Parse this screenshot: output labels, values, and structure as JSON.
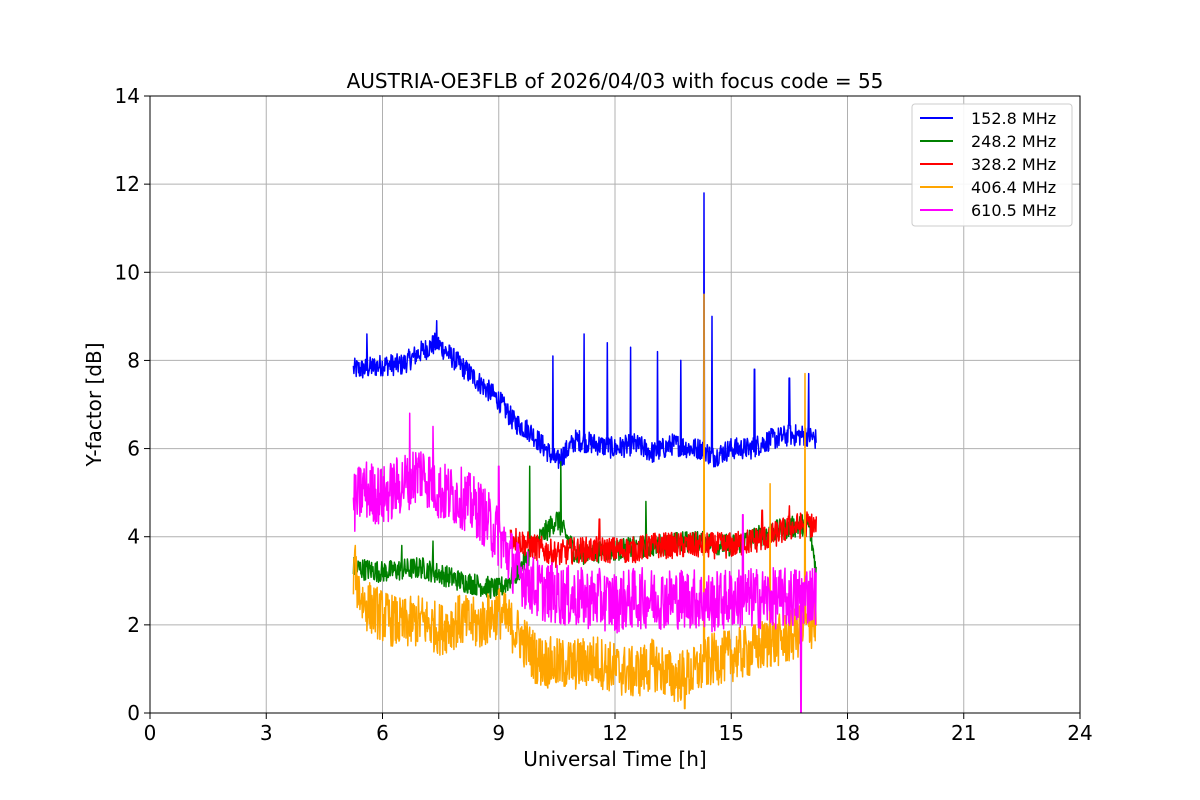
{
  "chart_data": {
    "type": "line",
    "title": "AUSTRIA-OE3FLB of 2026/04/03 with focus code = 55",
    "xlabel": "Universal Time [h]",
    "ylabel": "Y-factor [dB]",
    "xlim": [
      0,
      24
    ],
    "ylim": [
      0,
      14
    ],
    "xticks": [
      0,
      3,
      6,
      9,
      12,
      15,
      18,
      21,
      24
    ],
    "yticks": [
      0,
      2,
      4,
      6,
      8,
      10,
      12,
      14
    ],
    "grid": true,
    "legend_position": "top-right",
    "series": [
      {
        "name": "152.8 MHz",
        "color": "#0000ff",
        "x": [
          5.25,
          5.5,
          6.0,
          6.5,
          7.0,
          7.4,
          8.0,
          8.5,
          9.0,
          9.4,
          9.8,
          10.5,
          11.0,
          11.5,
          12.0,
          12.5,
          13.0,
          13.5,
          14.0,
          14.3,
          14.5,
          15.0,
          15.5,
          16.0,
          16.5,
          17.0,
          17.2
        ],
        "y": [
          7.8,
          7.8,
          7.9,
          7.9,
          8.2,
          8.4,
          7.9,
          7.5,
          7.1,
          6.6,
          6.4,
          5.7,
          6.2,
          6.1,
          6.0,
          6.1,
          5.9,
          6.1,
          6.0,
          6.0,
          5.8,
          6.0,
          6.0,
          6.2,
          6.3,
          6.3,
          6.2
        ],
        "spikes": [
          [
            5.6,
            8.6
          ],
          [
            7.4,
            8.9
          ],
          [
            10.4,
            8.1
          ],
          [
            11.2,
            8.6
          ],
          [
            11.8,
            8.4
          ],
          [
            12.4,
            8.3
          ],
          [
            13.1,
            8.2
          ],
          [
            13.7,
            8.0
          ],
          [
            14.3,
            11.8
          ],
          [
            14.5,
            9.0
          ],
          [
            15.6,
            7.8
          ],
          [
            16.5,
            7.6
          ],
          [
            17.0,
            7.7
          ]
        ]
      },
      {
        "name": "248.2 MHz",
        "color": "#008000",
        "x": [
          5.25,
          6.0,
          7.0,
          8.0,
          9.0,
          9.5,
          10.0,
          10.5,
          11.0,
          12.0,
          13.0,
          14.0,
          15.0,
          16.0,
          17.0,
          17.2
        ],
        "y": [
          3.3,
          3.2,
          3.3,
          3.0,
          2.8,
          3.2,
          3.9,
          4.4,
          3.6,
          3.7,
          3.8,
          3.9,
          3.8,
          4.1,
          4.3,
          3.2
        ],
        "spikes": [
          [
            6.5,
            3.8
          ],
          [
            7.3,
            3.9
          ],
          [
            9.8,
            5.6
          ],
          [
            10.6,
            5.7
          ],
          [
            12.8,
            4.8
          ]
        ]
      },
      {
        "name": "328.2 MHz",
        "color": "#ff0000",
        "x": [
          9.3,
          9.8,
          10.5,
          11.0,
          11.5,
          12.0,
          12.5,
          13.0,
          13.5,
          14.0,
          14.5,
          15.0,
          15.5,
          16.0,
          16.5,
          17.0,
          17.2
        ],
        "y": [
          4.0,
          3.8,
          3.6,
          3.7,
          3.7,
          3.7,
          3.7,
          3.8,
          3.8,
          3.8,
          3.8,
          3.8,
          3.9,
          4.0,
          4.2,
          4.3,
          4.2
        ],
        "spikes": [
          [
            11.6,
            4.4
          ],
          [
            15.8,
            4.6
          ],
          [
            16.5,
            4.7
          ]
        ]
      },
      {
        "name": "406.4 MHz",
        "color": "#ffa500",
        "x": [
          5.25,
          5.5,
          6.0,
          6.5,
          7.0,
          7.5,
          8.0,
          8.5,
          9.0,
          9.5,
          10.0,
          10.5,
          11.0,
          11.5,
          12.0,
          12.5,
          13.0,
          13.5,
          14.0,
          14.5,
          15.0,
          15.5,
          16.0,
          16.5,
          17.0,
          17.2
        ],
        "y": [
          3.2,
          2.5,
          2.2,
          2.0,
          2.1,
          1.9,
          2.1,
          2.0,
          2.3,
          1.8,
          1.2,
          1.1,
          1.1,
          1.2,
          1.0,
          0.9,
          1.1,
          0.8,
          0.9,
          1.2,
          1.3,
          1.4,
          1.6,
          1.7,
          2.0,
          2.1
        ],
        "spikes": [
          [
            5.3,
            3.8
          ],
          [
            14.3,
            9.5
          ],
          [
            16.0,
            5.2
          ],
          [
            16.9,
            7.7
          ],
          [
            13.8,
            0.1
          ]
        ]
      },
      {
        "name": "610.5 MHz",
        "color": "#ff00ff",
        "x": [
          5.25,
          5.5,
          6.0,
          6.5,
          7.0,
          7.5,
          8.0,
          8.5,
          9.0,
          9.5,
          10.0,
          10.5,
          11.0,
          11.5,
          12.0,
          12.5,
          13.0,
          13.5,
          14.0,
          14.5,
          15.0,
          15.5,
          16.0,
          16.5,
          17.0,
          17.2
        ],
        "y": [
          4.7,
          5.1,
          4.9,
          5.2,
          5.5,
          5.0,
          4.9,
          4.6,
          4.0,
          3.2,
          2.8,
          2.7,
          2.6,
          2.6,
          2.5,
          2.6,
          2.6,
          2.6,
          2.6,
          2.5,
          2.6,
          2.6,
          2.6,
          2.6,
          2.7,
          2.7
        ],
        "spikes": [
          [
            6.7,
            6.8
          ],
          [
            7.3,
            6.5
          ],
          [
            9.0,
            5.6
          ],
          [
            15.3,
            4.5
          ],
          [
            16.8,
            0.0
          ]
        ]
      }
    ]
  }
}
